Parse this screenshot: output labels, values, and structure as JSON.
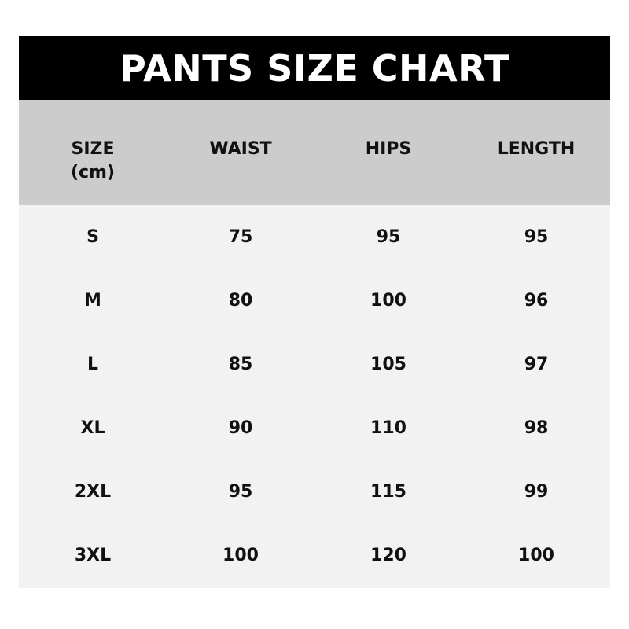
{
  "title": "PANTS SIZE CHART",
  "headers": [
    "SIZE",
    "WAIST",
    "HIPS",
    "LENGTH"
  ],
  "size_unit": "(cm)",
  "rows": [
    [
      "S",
      "75",
      "95",
      "95"
    ],
    [
      "M",
      "80",
      "100",
      "96"
    ],
    [
      "L",
      "85",
      "105",
      "97"
    ],
    [
      "XL",
      "90",
      "110",
      "98"
    ],
    [
      "2XL",
      "95",
      "115",
      "99"
    ],
    [
      "3XL",
      "100",
      "120",
      "100"
    ]
  ],
  "colors": {
    "title_bg": "#000000",
    "header_bg": "#cccccc",
    "body_bg": "#f2f2f2"
  }
}
